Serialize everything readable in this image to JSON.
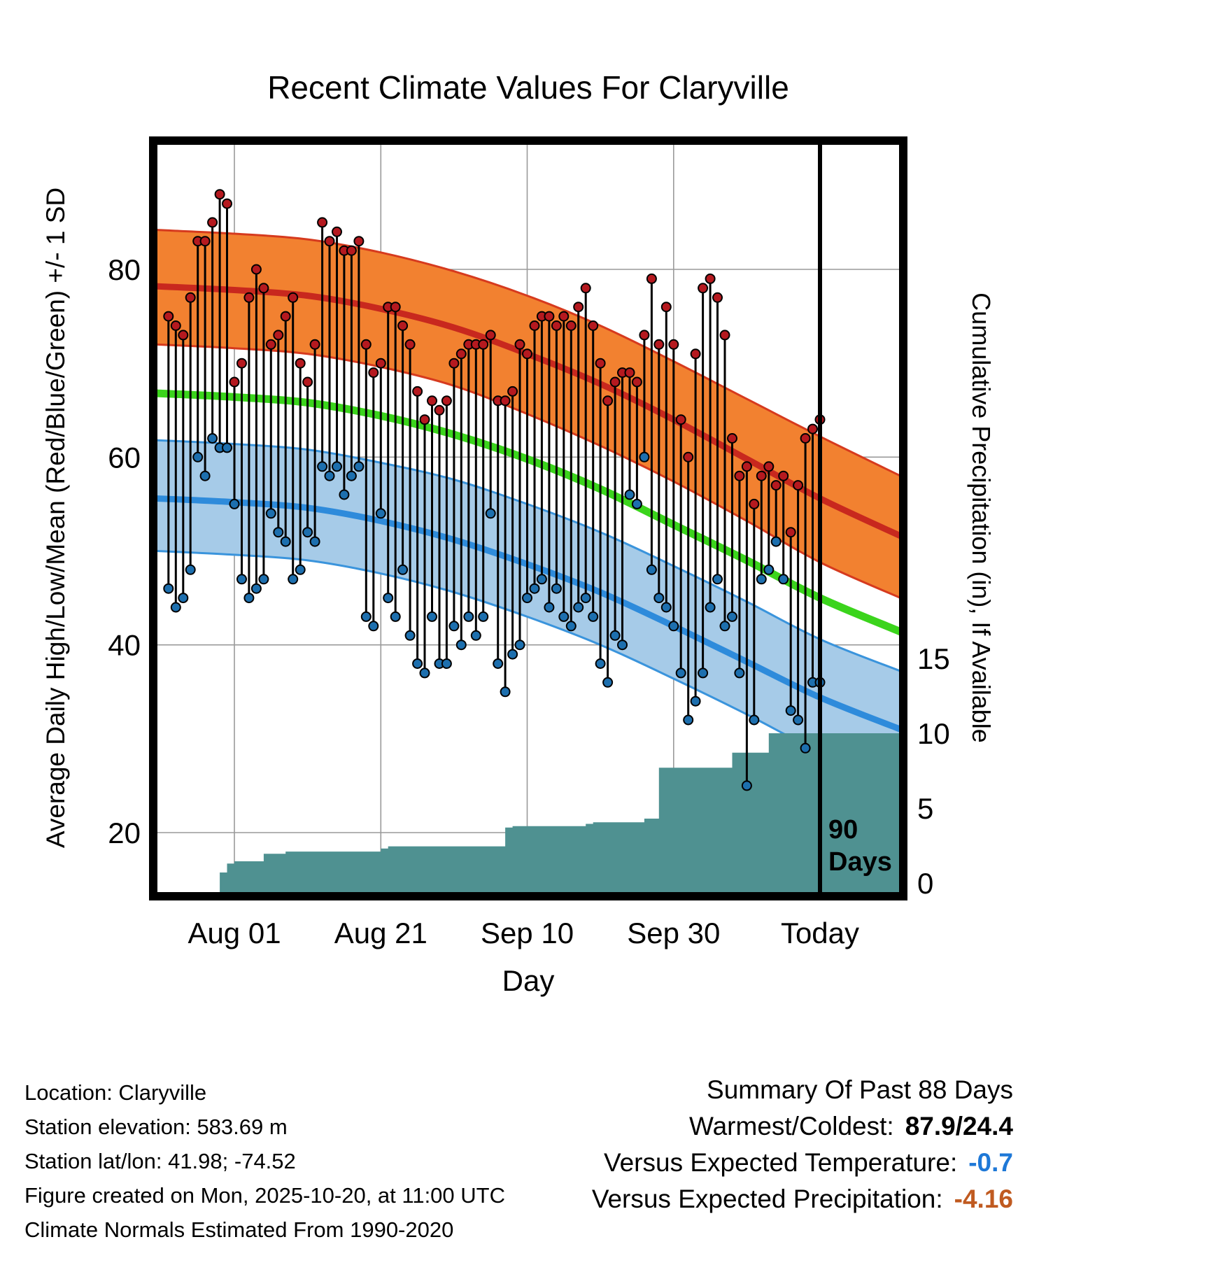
{
  "page": {
    "title": "Recent Climate Values For Claryville"
  },
  "axes": {
    "left_label": "Average Daily High/Low/Mean (Red/Blue/Green) +/- 1 SD",
    "right_label": "Cumulative Precipitation (in), If Available",
    "x_label": "Day"
  },
  "annotation": {
    "line1": "90",
    "line2": "Days"
  },
  "footer": {
    "lines": [
      "Location: Claryville",
      "Station elevation: 583.69 m",
      "Station lat/lon: 41.98; -74.52",
      "Figure created on Mon, 2025-10-20, at 11:00 UTC",
      "Climate Normals Estimated From 1990-2020"
    ]
  },
  "summary": {
    "title": "Summary Of Past 88 Days",
    "rows": [
      {
        "label": "Warmest/Coldest:",
        "value": "87.9/24.4",
        "color": "#000000"
      },
      {
        "label": "Versus Expected Temperature:",
        "value": "-0.7",
        "color": "#1e78d7"
      },
      {
        "label": "Versus Expected Precipitation:",
        "value": "-4.16",
        "color": "#c05a20"
      }
    ]
  },
  "colors": {
    "high_band": "#f28130",
    "high_band_edge": "#d63a1e",
    "high_mean": "#c8281e",
    "low_band": "#a6cbe8",
    "low_band_edge": "#3a94dc",
    "low_mean": "#2e8bdb",
    "mean_line": "#3bd41c",
    "high_dot": "#b5191f",
    "low_dot": "#1d6fae",
    "stem": "#000000",
    "precip_fill": "#4f9191",
    "grid": "#9a9a9a",
    "border": "#000000"
  },
  "chart_data": {
    "type": "line",
    "title": "Recent Climate Values For Claryville",
    "xlabel": "Day",
    "ylabel": "Average Daily High/Low/Mean (Red/Blue/Green) +/- 1 SD",
    "ylabel_right": "Cumulative Precipitation (in), If Available",
    "ylim_left": [
      14,
      93
    ],
    "yticks_left": [
      20,
      40,
      60,
      80
    ],
    "yticks_right": [
      0,
      5,
      10,
      15
    ],
    "x_tick_days": [
      9,
      29,
      49,
      69,
      89
    ],
    "x_tick_labels": [
      "Aug 01",
      "Aug 21",
      "Sep 10",
      "Sep 30",
      "Today"
    ],
    "today_day": 89,
    "n_days": 90,
    "normals": {
      "days": [
        -1.6,
        9,
        19,
        29,
        39,
        49,
        59,
        69,
        79,
        89,
        100
      ],
      "high_upper": [
        84.2,
        83.8,
        83.2,
        81.8,
        79.8,
        77.2,
        74.0,
        70.2,
        66.2,
        62.2,
        58.0
      ],
      "high_mean": [
        78.2,
        77.8,
        77.2,
        75.8,
        73.8,
        71.0,
        67.8,
        64.0,
        59.8,
        55.6,
        51.6
      ],
      "high_lower": [
        72.0,
        71.6,
        71.0,
        69.6,
        67.6,
        64.6,
        61.2,
        57.4,
        53.2,
        48.8,
        45.0
      ],
      "mean": [
        66.8,
        66.4,
        65.8,
        64.4,
        62.4,
        59.8,
        56.6,
        52.8,
        49.0,
        45.0,
        41.4
      ],
      "low_upper": [
        61.8,
        61.4,
        60.8,
        59.4,
        57.6,
        55.0,
        52.0,
        48.4,
        44.6,
        40.6,
        37.2
      ],
      "low_mean": [
        55.6,
        55.2,
        54.6,
        53.2,
        51.2,
        48.6,
        45.6,
        42.0,
        38.2,
        34.4,
        31.0
      ],
      "low_lower": [
        50.0,
        49.6,
        49.0,
        47.6,
        45.6,
        43.0,
        40.0,
        36.4,
        32.6,
        28.6,
        25.2
      ]
    },
    "daily": {
      "highs": [
        75,
        74,
        73,
        77,
        83,
        83,
        85,
        88,
        87,
        68,
        70,
        77,
        80,
        78,
        72,
        73,
        75,
        77,
        70,
        68,
        72,
        85,
        83,
        84,
        82,
        82,
        83,
        72,
        69,
        70,
        76,
        76,
        74,
        72,
        67,
        64,
        66,
        65,
        66,
        70,
        71,
        72,
        72,
        72,
        73,
        66,
        66,
        67,
        72,
        71,
        74,
        75,
        75,
        74,
        75,
        74,
        76,
        78,
        74,
        70,
        66,
        68,
        69,
        69,
        68,
        73,
        79,
        72,
        76,
        72,
        64,
        60,
        71,
        78,
        79,
        77,
        73,
        62,
        58,
        59,
        55,
        58,
        59,
        57,
        58,
        52,
        57,
        62,
        63,
        64
      ],
      "lows": [
        46,
        44,
        45,
        48,
        60,
        58,
        62,
        61,
        61,
        55,
        47,
        45,
        46,
        47,
        54,
        52,
        51,
        47,
        48,
        52,
        51,
        59,
        58,
        59,
        56,
        58,
        59,
        43,
        42,
        54,
        45,
        43,
        48,
        41,
        38,
        37,
        43,
        38,
        38,
        42,
        40,
        43,
        41,
        43,
        54,
        38,
        35,
        39,
        40,
        45,
        46,
        47,
        44,
        46,
        43,
        42,
        44,
        45,
        43,
        38,
        36,
        41,
        40,
        56,
        55,
        60,
        48,
        45,
        44,
        42,
        37,
        32,
        34,
        37,
        44,
        47,
        42,
        43,
        37,
        25,
        32,
        47,
        48,
        51,
        47,
        33,
        32,
        29,
        36,
        36
      ]
    },
    "precip_steps": [
      [
        -1.6,
        0
      ],
      [
        7,
        0.7
      ],
      [
        8,
        1.3
      ],
      [
        9,
        1.45
      ],
      [
        13,
        1.95
      ],
      [
        16,
        2.1
      ],
      [
        29,
        2.3
      ],
      [
        30,
        2.45
      ],
      [
        46,
        3.7
      ],
      [
        47,
        3.8
      ],
      [
        57,
        3.95
      ],
      [
        58,
        4.05
      ],
      [
        65,
        4.3
      ],
      [
        67,
        7.7
      ],
      [
        77,
        8.7
      ],
      [
        82,
        10.0
      ],
      [
        100,
        10.0
      ]
    ]
  }
}
